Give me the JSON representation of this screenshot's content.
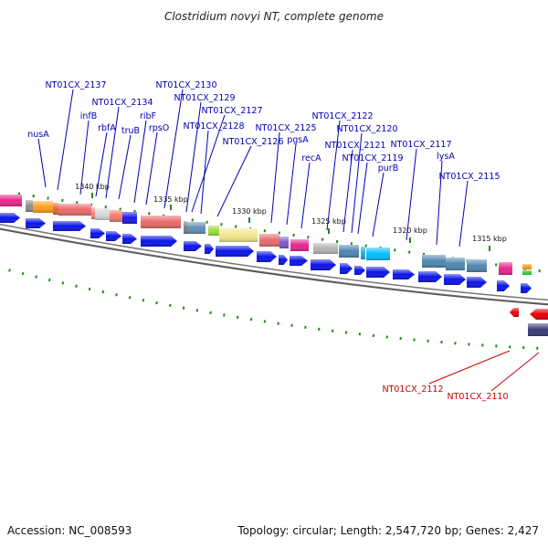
{
  "title": "Clostridium novyi NT, complete genome",
  "footer": {
    "accession": "Accession: NC_008593",
    "summary": "Topology: circular; Length: 2,547,720 bp; Genes: 2,427"
  },
  "colors": {
    "forward_gene": "#0a14e6",
    "reverse_gene": "#e6000a",
    "forward_label": "#0000b4",
    "reverse_label": "#c80000",
    "backbone": "#7a7a7a",
    "tick": "#1a8c1a"
  },
  "ticks": [
    "1340 kbp",
    "1335 kbp",
    "1330 kbp",
    "1325 kbp",
    "1320 kbp",
    "1315 kbp"
  ],
  "gene_labels": [
    {
      "name": "nusA",
      "strand": "forward"
    },
    {
      "name": "NT01CX_2137",
      "strand": "forward"
    },
    {
      "name": "infB",
      "strand": "forward"
    },
    {
      "name": "rbfA",
      "strand": "forward"
    },
    {
      "name": "NT01CX_2134",
      "strand": "forward"
    },
    {
      "name": "truB",
      "strand": "forward"
    },
    {
      "name": "ribF",
      "strand": "forward"
    },
    {
      "name": "rpsO",
      "strand": "forward"
    },
    {
      "name": "NT01CX_2130",
      "strand": "forward"
    },
    {
      "name": "NT01CX_2129",
      "strand": "forward"
    },
    {
      "name": "NT01CX_2128",
      "strand": "forward"
    },
    {
      "name": "NT01CX_2127",
      "strand": "forward"
    },
    {
      "name": "NT01CX_2126",
      "strand": "forward"
    },
    {
      "name": "NT01CX_2125",
      "strand": "forward"
    },
    {
      "name": "pgsA",
      "strand": "forward"
    },
    {
      "name": "NT01CX_2122",
      "strand": "forward"
    },
    {
      "name": "recA",
      "strand": "forward"
    },
    {
      "name": "NT01CX_2121",
      "strand": "forward"
    },
    {
      "name": "NT01CX_2120",
      "strand": "forward"
    },
    {
      "name": "NT01CX_2119",
      "strand": "forward"
    },
    {
      "name": "purB",
      "strand": "forward"
    },
    {
      "name": "NT01CX_2117",
      "strand": "forward"
    },
    {
      "name": "lysA",
      "strand": "forward"
    },
    {
      "name": "NT01CX_2115",
      "strand": "forward"
    },
    {
      "name": "NT01CX_2112",
      "strand": "reverse"
    },
    {
      "name": "NT01CX_2110",
      "strand": "reverse"
    }
  ]
}
